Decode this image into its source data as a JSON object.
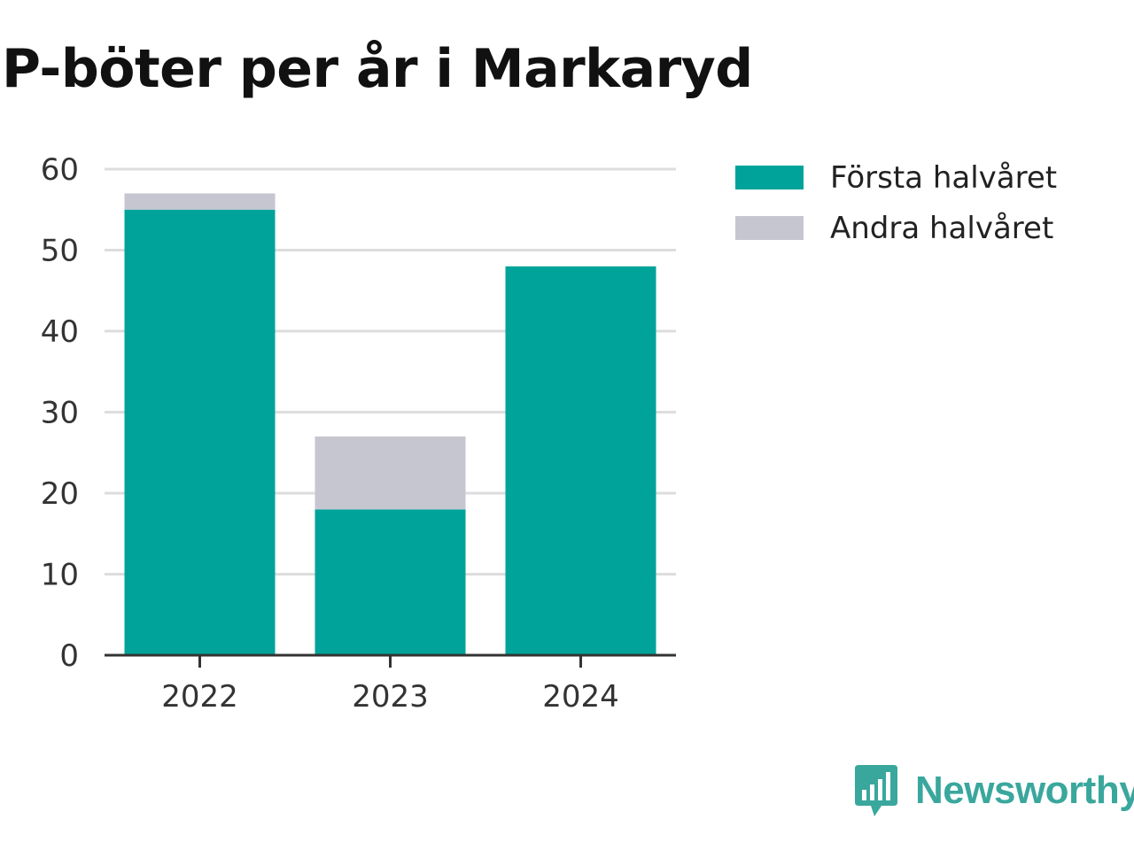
{
  "title": "P-böter per år i Markaryd",
  "brand": {
    "name": "Newsworthy",
    "color": "#3aa79d",
    "icon": "newsworthy-logo-icon"
  },
  "colors": {
    "first_half": "#00a39a",
    "second_half": "#c6c6d0",
    "grid": "#dddddd",
    "axis": "#333333"
  },
  "chart_data": {
    "type": "bar",
    "stacked": true,
    "title": "P-böter per år i Markaryd",
    "xlabel": "",
    "ylabel": "",
    "categories": [
      "2022",
      "2023",
      "2024"
    ],
    "series": [
      {
        "name": "Första halvåret",
        "values": [
          55,
          18,
          48
        ],
        "color": "#00a39a"
      },
      {
        "name": "Andra halvåret",
        "values": [
          2,
          9,
          0
        ],
        "color": "#c6c6d0"
      }
    ],
    "ylim": [
      0,
      60
    ],
    "yticks": [
      "0",
      "10",
      "20",
      "30",
      "40",
      "50",
      "60"
    ],
    "grid": true,
    "legend_position": "top-right"
  }
}
